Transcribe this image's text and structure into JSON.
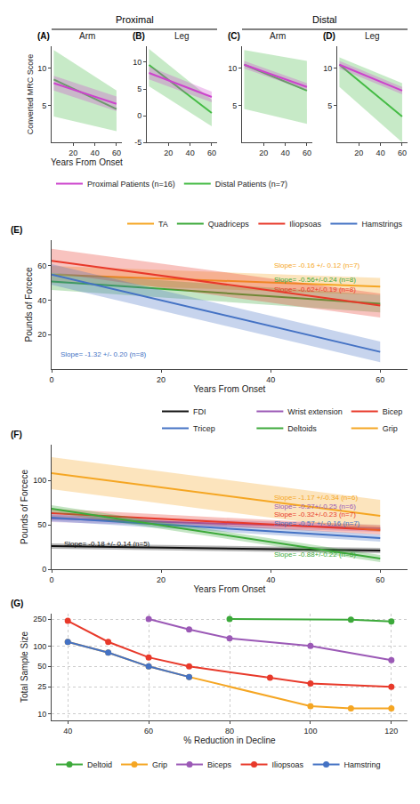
{
  "chart_data": [
    {
      "type": "line",
      "title": "Arm",
      "x": [
        2,
        60
      ],
      "xlim": [
        0,
        65
      ],
      "xticks": [
        20,
        40,
        60
      ],
      "ylim": [
        0,
        13
      ],
      "yticks": [
        5,
        10
      ],
      "grid": false,
      "xlabel": "Years From Onset",
      "ylabel": "Converted MRC Score",
      "annotations": [
        {
          "text": "(A)"
        },
        {
          "text": "Proximal"
        }
      ],
      "series": [
        {
          "name": "Distal Patients (n=7)",
          "color": "#44bb44",
          "values": [
            8.5,
            4.5
          ],
          "upper": [
            12.5,
            7.0
          ],
          "lower": [
            3.5,
            1.5
          ]
        },
        {
          "name": "Proximal Patients (n=16)",
          "color": "#cc44cc",
          "values": [
            8.0,
            5.2
          ],
          "upper": [
            9.0,
            6.2
          ],
          "lower": [
            7.0,
            4.2
          ]
        }
      ]
    },
    {
      "type": "line",
      "title": "Leg",
      "x": [
        2,
        60
      ],
      "xlim": [
        0,
        65
      ],
      "xticks": [
        20,
        40,
        60
      ],
      "ylim": [
        -5,
        13
      ],
      "yticks": [
        -5,
        0,
        5,
        10
      ],
      "grid": false,
      "annotations": [
        {
          "text": "(B)"
        }
      ],
      "series": [
        {
          "color": "#44bb44",
          "values": [
            9.5,
            0.5
          ],
          "upper": [
            12.5,
            3.0
          ],
          "lower": [
            5.5,
            -2.0
          ]
        },
        {
          "color": "#cc44cc",
          "values": [
            8.0,
            3.5
          ],
          "upper": [
            9.2,
            4.5
          ],
          "lower": [
            6.8,
            2.5
          ]
        }
      ]
    },
    {
      "type": "line",
      "title": "Arm",
      "x": [
        2,
        60
      ],
      "xlim": [
        0,
        65
      ],
      "xticks": [
        20,
        40,
        60
      ],
      "ylim": [
        0,
        13
      ],
      "yticks": [
        5,
        10
      ],
      "grid": false,
      "annotations": [
        {
          "text": "(C)"
        },
        {
          "text": "Distal"
        }
      ],
      "series": [
        {
          "color": "#44bb44",
          "values": [
            10.5,
            7.0
          ],
          "upper": [
            12.5,
            11.0
          ],
          "lower": [
            4.5,
            2.5
          ]
        },
        {
          "color": "#cc44cc",
          "values": [
            10.5,
            7.5
          ],
          "upper": [
            11.0,
            8.0
          ],
          "lower": [
            10.0,
            7.0
          ]
        }
      ]
    },
    {
      "type": "line",
      "title": "Leg",
      "x": [
        2,
        60
      ],
      "xlim": [
        0,
        65
      ],
      "xticks": [
        20,
        40,
        60
      ],
      "ylim": [
        0,
        13
      ],
      "yticks": [
        5,
        10
      ],
      "grid": false,
      "annotations": [
        {
          "text": "(D)"
        }
      ],
      "series": [
        {
          "color": "#44bb44",
          "values": [
            10.5,
            3.5
          ],
          "upper": [
            11.5,
            8.0
          ],
          "lower": [
            7.5,
            0.0
          ]
        },
        {
          "color": "#cc44cc",
          "values": [
            10.5,
            7.0
          ],
          "upper": [
            11.0,
            7.5
          ],
          "lower": [
            10.0,
            6.5
          ]
        }
      ]
    },
    {
      "type": "line",
      "x": [
        0,
        60
      ],
      "xlim": [
        0,
        65
      ],
      "xticks": [
        0,
        20,
        40,
        60
      ],
      "ylim": [
        0,
        75
      ],
      "yticks": [
        20,
        40,
        60
      ],
      "grid": false,
      "xlabel": "Years From Onset",
      "ylabel": "Pounds of Forcece",
      "annotations": [
        {
          "text": "(E)"
        },
        {
          "text": "Slope= -0.16 +/- 0.12 (n=7)",
          "color": "#f5a623"
        },
        {
          "text": "Slope= -0.56+/-0.24 (n=8)",
          "color": "#3ca93a"
        },
        {
          "text": "Slope= -0.62+/-0.19 (n=8)",
          "color": "#e8392a"
        },
        {
          "text": "Slope= -1.32 +/- 0.20 (n=8)",
          "color": "#4472c4"
        }
      ],
      "series": [
        {
          "name": "TA",
          "color": "#f5a623",
          "values": [
            55,
            48
          ],
          "upper": [
            60,
            53
          ],
          "lower": [
            50,
            43
          ]
        },
        {
          "name": "Quadriceps",
          "color": "#3ca93a",
          "values": [
            51,
            38
          ],
          "upper": [
            56,
            43
          ],
          "lower": [
            46,
            33
          ]
        },
        {
          "name": "Iliopsoas",
          "color": "#e8392a",
          "values": [
            63,
            37
          ],
          "upper": [
            70,
            44
          ],
          "lower": [
            56,
            30
          ]
        },
        {
          "name": "Hamstrings",
          "color": "#4472c4",
          "values": [
            55,
            10
          ],
          "upper": [
            61,
            16
          ],
          "lower": [
            49,
            4
          ]
        }
      ]
    },
    {
      "type": "line",
      "x": [
        0,
        60
      ],
      "xlim": [
        0,
        65
      ],
      "xticks": [
        0,
        20,
        40,
        60
      ],
      "ylim": [
        0,
        140
      ],
      "yticks": [
        0,
        50,
        100
      ],
      "grid": false,
      "xlabel": "Years From Onset",
      "ylabel": "Pounds of Forcece",
      "annotations": [
        {
          "text": "(F)"
        },
        {
          "text": "Slope= -1.17 +/-0.34 (n=6)",
          "color": "#f5a623"
        },
        {
          "text": "Slope= -0.27+/-0.25 (n=6)",
          "color": "#9b59b6"
        },
        {
          "text": "Slope= -0.32+/-0.23 (n=7)",
          "color": "#e8392a"
        },
        {
          "text": "Slope= -0.57 +/- 0.16 (n=7)",
          "color": "#4472c4"
        },
        {
          "text": "Slope= -0.18 +/- 0.14 (n=5)",
          "color": "#111111"
        },
        {
          "text": "Slope= -0.88+/-0.22 (n=8)",
          "color": "#3ca93a"
        }
      ],
      "series": [
        {
          "name": "FDI",
          "color": "#111111",
          "values": [
            26,
            21
          ],
          "upper": [
            29,
            24
          ],
          "lower": [
            23,
            18
          ]
        },
        {
          "name": "Wrist extension",
          "color": "#9b59b6",
          "values": [
            57,
            46
          ],
          "upper": [
            61,
            50
          ],
          "lower": [
            53,
            42
          ]
        },
        {
          "name": "Bicep",
          "color": "#e8392a",
          "values": [
            63,
            44
          ],
          "upper": [
            68,
            49
          ],
          "lower": [
            58,
            39
          ]
        },
        {
          "name": "Tricep",
          "color": "#4472c4",
          "values": [
            58,
            35
          ],
          "upper": [
            62,
            39
          ],
          "lower": [
            54,
            31
          ]
        },
        {
          "name": "Deltoids",
          "color": "#3ca93a",
          "values": [
            68,
            12
          ],
          "upper": [
            72,
            16
          ],
          "lower": [
            64,
            8
          ]
        },
        {
          "name": "Grip",
          "color": "#f5a623",
          "values": [
            108,
            60
          ],
          "upper": [
            126,
            78
          ],
          "lower": [
            90,
            42
          ]
        }
      ]
    },
    {
      "type": "line",
      "log": "y",
      "xlim": [
        36,
        124
      ],
      "xticks": [
        40,
        60,
        80,
        100,
        120
      ],
      "ylim": [
        8,
        300
      ],
      "yticks": [
        10,
        25,
        50,
        100,
        250
      ],
      "grid": true,
      "xlabel": "% Reduction in Decline",
      "ylabel": "Total Sample Size",
      "annotations": [
        {
          "text": "(G)"
        }
      ],
      "series": [
        {
          "name": "Deltoid",
          "color": "#3ca93a",
          "marker": "circle",
          "x": [
            80,
            110,
            120
          ],
          "values": [
            250,
            245,
            230
          ]
        },
        {
          "name": "Grip",
          "color": "#f5a623",
          "marker": "circle",
          "x": [
            40,
            50,
            60,
            70,
            100,
            110,
            120
          ],
          "values": [
            115,
            80,
            50,
            35,
            13,
            12,
            12
          ]
        },
        {
          "name": "Biceps",
          "color": "#9b59b6",
          "marker": "circle",
          "x": [
            60,
            70,
            80,
            100,
            120
          ],
          "values": [
            250,
            175,
            130,
            100,
            62
          ]
        },
        {
          "name": "Iliopsoas",
          "color": "#e8392a",
          "marker": "circle",
          "x": [
            40,
            50,
            60,
            70,
            90,
            100,
            120
          ],
          "values": [
            235,
            115,
            68,
            50,
            34,
            28,
            25
          ]
        },
        {
          "name": "Hamstring",
          "color": "#4472c4",
          "marker": "circle",
          "x": [
            40,
            50,
            60,
            70
          ],
          "values": [
            115,
            80,
            50,
            35
          ]
        }
      ]
    }
  ]
}
